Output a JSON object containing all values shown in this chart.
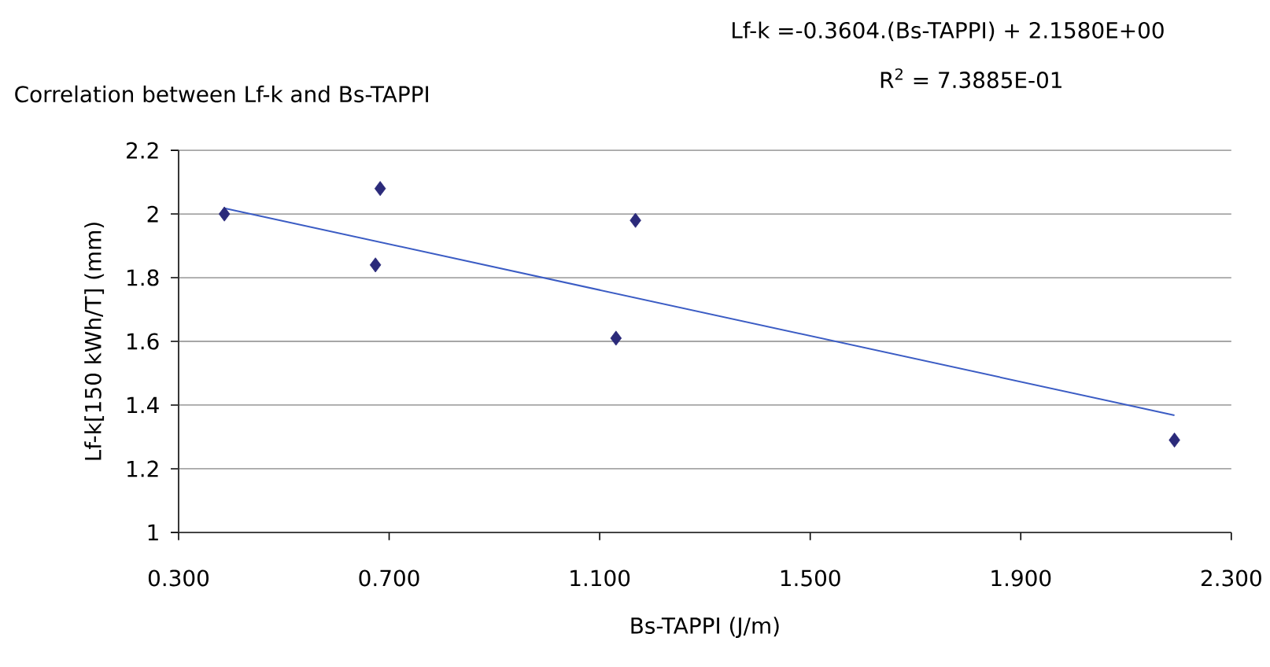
{
  "chart_data": {
    "type": "scatter",
    "title": "Correlation between  Lf-k and Bs-TAPPI",
    "xlabel": "Bs-TAPPI (J/m)",
    "ylabel": "Lf-k[150 kWh/T] (mm)",
    "annotations": [
      "Lf-k =-0.3604.(Bs-TAPPI) + 2.1580E+00",
      "R$^{2}$ = 7.3885E-01"
    ],
    "series": [
      {
        "color": "#2b2a7a",
        "marker": "diamond",
        "x": [
          0.387,
          0.683,
          0.674,
          1.168,
          1.131,
          2.192
        ],
        "values": [
          2.0,
          2.08,
          1.84,
          1.98,
          1.61,
          1.29
        ]
      },
      {
        "type": "line",
        "color": "#3b5cc4",
        "line_style": "solid",
        "x": [
          0.387,
          2.192
        ],
        "values": [
          2.018,
          1.368
        ]
      }
    ],
    "xlim": [
      0.3,
      2.3
    ],
    "xticks": [
      {
        "value": 0.3,
        "label": "0.300"
      },
      {
        "value": 0.7,
        "label": "0.700"
      },
      {
        "value": 1.1,
        "label": "1.100"
      },
      {
        "value": 1.5,
        "label": "1.500"
      },
      {
        "value": 1.9,
        "label": "1.900"
      },
      {
        "value": 2.3,
        "label": "2.300"
      }
    ],
    "ylim": [
      1,
      2.2
    ],
    "yticks": [
      1,
      1.2,
      1.4,
      1.6,
      1.8,
      2,
      2.2
    ],
    "grid": "y"
  }
}
